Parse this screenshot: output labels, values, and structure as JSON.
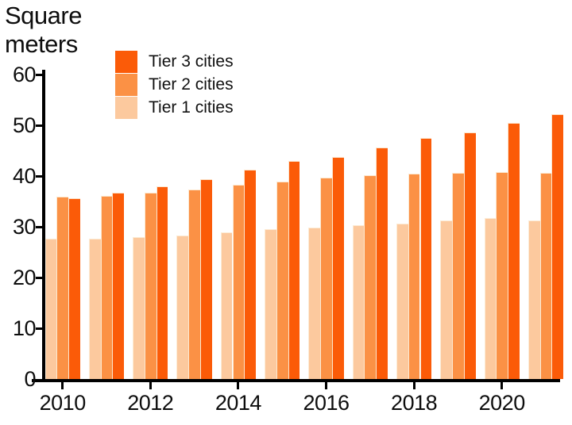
{
  "title": "Square meters",
  "legend": {
    "position": "top-left",
    "items": [
      {
        "key": "tier3",
        "label": "Tier 3 cities",
        "color": "#FB5B08"
      },
      {
        "key": "tier2",
        "label": "Tier 2 cities",
        "color": "#FB9145"
      },
      {
        "key": "tier1",
        "label": "Tier 1 cities",
        "color": "#FCC99E"
      }
    ]
  },
  "chart_data": {
    "type": "bar",
    "title": "Square meters",
    "xlabel": "",
    "ylabel": "Square meters",
    "categories": [
      "2010",
      "2011",
      "2012",
      "2013",
      "2014",
      "2015",
      "2016",
      "2017",
      "2018",
      "2019",
      "2020",
      "2021"
    ],
    "series": [
      {
        "name": "Tier 1 cities",
        "key": "tier1",
        "color": "#FCC99E",
        "values": [
          27.6,
          27.7,
          27.9,
          28.3,
          28.9,
          29.5,
          29.9,
          30.3,
          30.7,
          31.2,
          31.7,
          31.2
        ]
      },
      {
        "name": "Tier 2 cities",
        "key": "tier2",
        "color": "#FB9145",
        "values": [
          36.0,
          36.1,
          36.7,
          37.4,
          38.3,
          38.9,
          39.7,
          40.2,
          40.5,
          40.7,
          40.8,
          40.7
        ]
      },
      {
        "name": "Tier 3 cities",
        "key": "tier3",
        "color": "#FB5B08",
        "values": [
          35.6,
          36.7,
          37.9,
          39.3,
          41.2,
          43.0,
          43.8,
          45.6,
          47.5,
          48.6,
          50.4,
          52.2
        ]
      }
    ],
    "ylim": [
      0,
      60
    ],
    "yticks": [
      0,
      10,
      20,
      30,
      40,
      50,
      60
    ],
    "xtick_labels": [
      "2010",
      "2012",
      "2014",
      "2016",
      "2018",
      "2020"
    ],
    "grid": "off",
    "legend_position": "top-left",
    "axis_color": "#000000"
  }
}
